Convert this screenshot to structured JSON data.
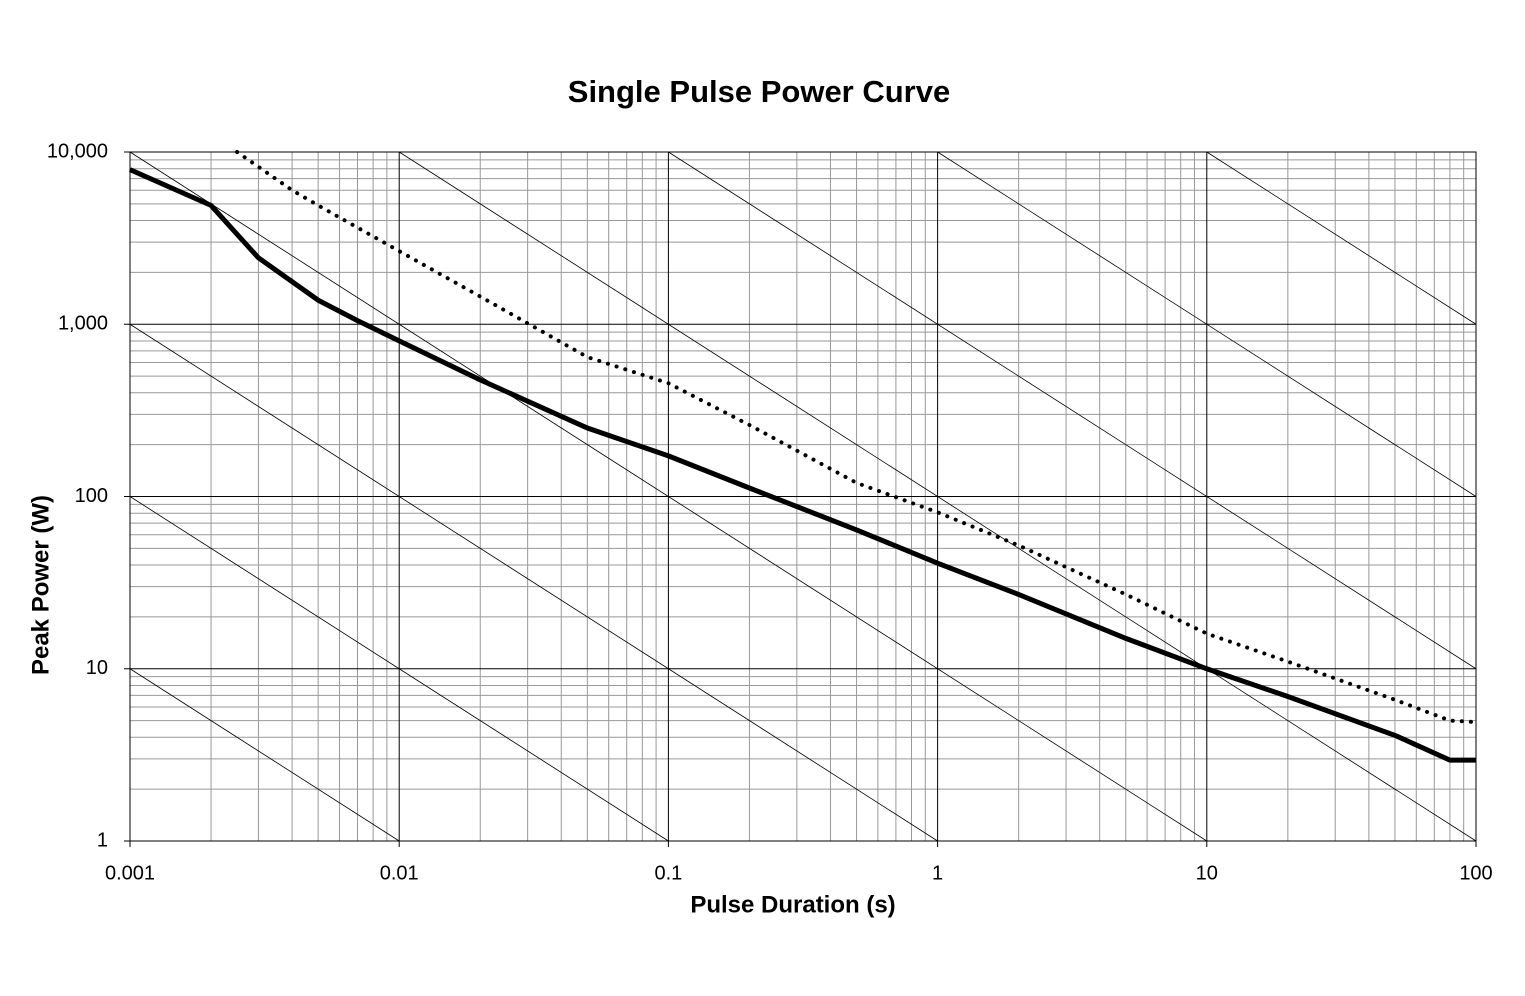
{
  "chart_data": {
    "type": "line",
    "title": "Single Pulse Power Curve",
    "x_label": "Pulse Duration (s)",
    "y_label": "Peak Power (W)",
    "x_scale": "log",
    "y_scale": "log",
    "grid": true,
    "minor_grid": true,
    "energy_lines": true,
    "xlim": [
      0.001,
      100
    ],
    "ylim": [
      1,
      10000
    ],
    "xticks": [
      0.001,
      0.01,
      0.1,
      1,
      10,
      100
    ],
    "yticks": [
      1,
      10,
      100,
      {
        "value": 1000,
        "label": "1,000"
      },
      {
        "value": 10000,
        "label": "10,000"
      }
    ],
    "series": [
      {
        "color": "#000000",
        "style": "solid",
        "x": [
          0.001,
          0.002,
          0.003,
          0.005,
          0.007,
          0.01,
          0.02,
          0.05,
          0.1,
          0.2,
          0.5,
          1,
          2,
          5,
          10,
          20,
          50,
          80,
          100
        ],
        "values": [
          7900,
          4900,
          2430,
          1380,
          1050,
          800,
          475,
          250,
          172,
          112,
          64,
          41,
          27,
          15,
          10,
          6.9,
          4.1,
          2.95,
          2.95
        ]
      },
      {
        "color": "#000000",
        "style": "dotted",
        "x": [
          0.0025,
          0.004,
          0.005,
          0.01,
          0.02,
          0.05,
          0.1,
          0.2,
          0.5,
          1,
          2,
          5,
          10,
          20,
          50,
          80,
          100
        ],
        "values": [
          10000,
          6000,
          4900,
          2660,
          1450,
          645,
          455,
          260,
          120,
          81,
          52,
          27,
          16,
          11,
          6.6,
          5.0,
          4.9
        ]
      }
    ]
  }
}
